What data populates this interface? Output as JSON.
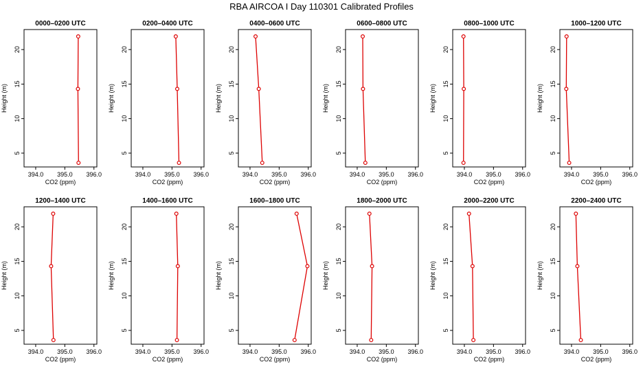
{
  "title": "RBA AIRCOA I  Day 110301  Calibrated Profiles",
  "colors": {
    "line": "#dd0000",
    "axis": "#000000",
    "background": "#ffffff"
  },
  "chart_data": [
    {
      "type": "line",
      "title": "0000–0200 UTC",
      "xlabel": "CO2 (ppm)",
      "ylabel": "Height (m)",
      "xlim": [
        393.6,
        396.1
      ],
      "ylim": [
        3.0,
        22.9
      ],
      "xticks": [
        "394.0",
        "395.0",
        "396.0"
      ],
      "yticks": [
        "5",
        "10",
        "15",
        "20"
      ],
      "points": [
        {
          "x": 395.47,
          "y": 3.6
        },
        {
          "x": 395.45,
          "y": 14.3
        },
        {
          "x": 395.46,
          "y": 21.9
        }
      ]
    },
    {
      "type": "line",
      "title": "0200–0400 UTC",
      "xlabel": "CO2 (ppm)",
      "ylabel": "Height (m)",
      "xlim": [
        393.6,
        396.1
      ],
      "ylim": [
        3.0,
        22.9
      ],
      "xticks": [
        "394.0",
        "395.0",
        "396.0"
      ],
      "yticks": [
        "5",
        "10",
        "15",
        "20"
      ],
      "points": [
        {
          "x": 395.24,
          "y": 3.6
        },
        {
          "x": 395.18,
          "y": 14.3
        },
        {
          "x": 395.13,
          "y": 21.9
        }
      ]
    },
    {
      "type": "line",
      "title": "0400–0600 UTC",
      "xlabel": "CO2 (ppm)",
      "ylabel": "Height (m)",
      "xlim": [
        393.6,
        396.1
      ],
      "ylim": [
        3.0,
        22.9
      ],
      "xticks": [
        "394.0",
        "395.0",
        "396.0"
      ],
      "yticks": [
        "5",
        "10",
        "15",
        "20"
      ],
      "points": [
        {
          "x": 394.42,
          "y": 3.6
        },
        {
          "x": 394.3,
          "y": 14.3
        },
        {
          "x": 394.19,
          "y": 21.9
        }
      ]
    },
    {
      "type": "line",
      "title": "0600–0800 UTC",
      "xlabel": "CO2 (ppm)",
      "ylabel": "Height (m)",
      "xlim": [
        393.6,
        396.1
      ],
      "ylim": [
        3.0,
        22.9
      ],
      "xticks": [
        "394.0",
        "395.0",
        "396.0"
      ],
      "yticks": [
        "5",
        "10",
        "15",
        "20"
      ],
      "points": [
        {
          "x": 394.28,
          "y": 3.6
        },
        {
          "x": 394.2,
          "y": 14.3
        },
        {
          "x": 394.19,
          "y": 21.9
        }
      ]
    },
    {
      "type": "line",
      "title": "0800–1000 UTC",
      "xlabel": "CO2 (ppm)",
      "ylabel": "Height (m)",
      "xlim": [
        393.6,
        396.1
      ],
      "ylim": [
        3.0,
        22.9
      ],
      "xticks": [
        "394.0",
        "395.0",
        "396.0"
      ],
      "yticks": [
        "5",
        "10",
        "15",
        "20"
      ],
      "points": [
        {
          "x": 393.97,
          "y": 3.6
        },
        {
          "x": 393.98,
          "y": 14.3
        },
        {
          "x": 393.97,
          "y": 21.9
        }
      ]
    },
    {
      "type": "line",
      "title": "1000–1200 UTC",
      "xlabel": "CO2 (ppm)",
      "ylabel": "Height (m)",
      "xlim": [
        393.6,
        396.1
      ],
      "ylim": [
        3.0,
        22.9
      ],
      "xticks": [
        "394.0",
        "395.0",
        "396.0"
      ],
      "yticks": [
        "5",
        "10",
        "15",
        "20"
      ],
      "points": [
        {
          "x": 393.92,
          "y": 3.6
        },
        {
          "x": 393.82,
          "y": 14.3
        },
        {
          "x": 393.83,
          "y": 21.9
        }
      ]
    },
    {
      "type": "line",
      "title": "1200–1400 UTC",
      "xlabel": "CO2 (ppm)",
      "ylabel": "Height (m)",
      "xlim": [
        393.6,
        396.1
      ],
      "ylim": [
        3.0,
        22.9
      ],
      "xticks": [
        "394.0",
        "395.0",
        "396.0"
      ],
      "yticks": [
        "5",
        "10",
        "15",
        "20"
      ],
      "points": [
        {
          "x": 394.61,
          "y": 3.6
        },
        {
          "x": 394.53,
          "y": 14.3
        },
        {
          "x": 394.6,
          "y": 21.9
        }
      ]
    },
    {
      "type": "line",
      "title": "1400–1600 UTC",
      "xlabel": "CO2 (ppm)",
      "ylabel": "Height (m)",
      "xlim": [
        393.6,
        396.1
      ],
      "ylim": [
        3.0,
        22.9
      ],
      "xticks": [
        "394.0",
        "395.0",
        "396.0"
      ],
      "yticks": [
        "5",
        "10",
        "15",
        "20"
      ],
      "points": [
        {
          "x": 395.17,
          "y": 3.6
        },
        {
          "x": 395.2,
          "y": 14.3
        },
        {
          "x": 395.15,
          "y": 21.9
        }
      ]
    },
    {
      "type": "line",
      "title": "1600–1800 UTC",
      "xlabel": "CO2 (ppm)",
      "ylabel": "Height (m)",
      "xlim": [
        393.6,
        396.1
      ],
      "ylim": [
        3.0,
        22.9
      ],
      "xticks": [
        "394.0",
        "395.0",
        "396.0"
      ],
      "yticks": [
        "5",
        "10",
        "15",
        "20"
      ],
      "points": [
        {
          "x": 395.53,
          "y": 3.6
        },
        {
          "x": 395.97,
          "y": 14.3
        },
        {
          "x": 395.6,
          "y": 21.9
        }
      ]
    },
    {
      "type": "line",
      "title": "1800–2000 UTC",
      "xlabel": "CO2 (ppm)",
      "ylabel": "Height (m)",
      "xlim": [
        393.6,
        396.1
      ],
      "ylim": [
        3.0,
        22.9
      ],
      "xticks": [
        "394.0",
        "395.0",
        "396.0"
      ],
      "yticks": [
        "5",
        "10",
        "15",
        "20"
      ],
      "points": [
        {
          "x": 394.48,
          "y": 3.6
        },
        {
          "x": 394.51,
          "y": 14.3
        },
        {
          "x": 394.42,
          "y": 21.9
        }
      ]
    },
    {
      "type": "line",
      "title": "2000–2200 UTC",
      "xlabel": "CO2 (ppm)",
      "ylabel": "Height (m)",
      "xlim": [
        393.6,
        396.1
      ],
      "ylim": [
        3.0,
        22.9
      ],
      "xticks": [
        "394.0",
        "395.0",
        "396.0"
      ],
      "yticks": [
        "5",
        "10",
        "15",
        "20"
      ],
      "points": [
        {
          "x": 394.31,
          "y": 3.6
        },
        {
          "x": 394.28,
          "y": 14.3
        },
        {
          "x": 394.16,
          "y": 21.9
        }
      ]
    },
    {
      "type": "line",
      "title": "2200–2400 UTC",
      "xlabel": "CO2 (ppm)",
      "ylabel": "Height (m)",
      "xlim": [
        393.6,
        396.1
      ],
      "ylim": [
        3.0,
        22.9
      ],
      "xticks": [
        "394.0",
        "395.0",
        "396.0"
      ],
      "yticks": [
        "5",
        "10",
        "15",
        "20"
      ],
      "points": [
        {
          "x": 394.32,
          "y": 3.6
        },
        {
          "x": 394.2,
          "y": 14.3
        },
        {
          "x": 394.15,
          "y": 21.9
        }
      ]
    }
  ]
}
